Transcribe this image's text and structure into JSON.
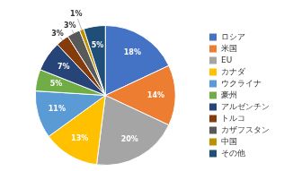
{
  "chart_data": {
    "type": "pie",
    "categories": [
      "ロシア",
      "米国",
      "EU",
      "カナダ",
      "ウクライナ",
      "豪州",
      "アルゼンチン",
      "トルコ",
      "カザフスタン",
      "中国",
      "その他"
    ],
    "values": [
      18,
      14,
      20,
      13,
      11,
      5,
      7,
      3,
      3,
      1,
      5
    ],
    "value_labels": [
      "18%",
      "14%",
      "20%",
      "13%",
      "11%",
      "5%",
      "7%",
      "3%",
      "3%",
      "1%",
      "5%"
    ],
    "colors": [
      "#4472C4",
      "#ED7D31",
      "#A5A5A5",
      "#FFC000",
      "#5B9BD5",
      "#70AD47",
      "#264478",
      "#843C0C",
      "#595959",
      "#BF8F00",
      "#1F4E79"
    ],
    "legend": "right",
    "data_labels": true
  }
}
